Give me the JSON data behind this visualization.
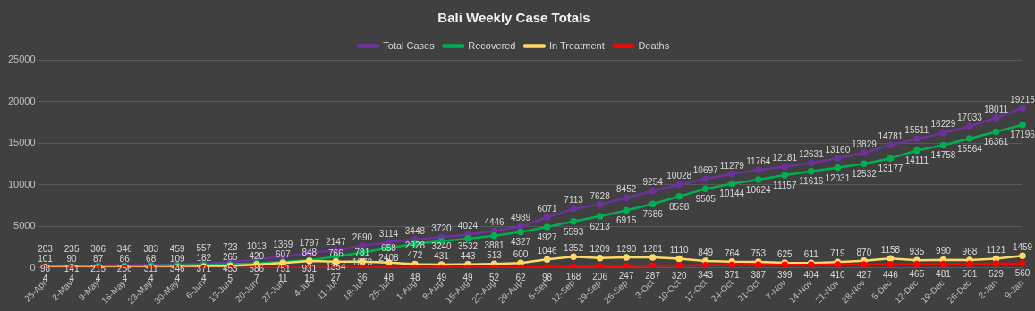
{
  "chart_data": {
    "type": "line",
    "title": "Bali Weekly Case Totals",
    "categories": [
      "25-Apr",
      "2-May",
      "9-May",
      "16-May",
      "23-May",
      "30-May",
      "6-Jun",
      "13-Jun",
      "20-Jun",
      "27-Jun",
      "4-Jul",
      "11-Jul",
      "18-Jul",
      "25-Jul",
      "1-Aug",
      "8-Aug",
      "15-Aug",
      "22-Aug",
      "29-Aug",
      "5-Sep",
      "12-Sep",
      "19-Sep",
      "26-Sep",
      "3-Oct",
      "10-Oct",
      "17-Oct",
      "24-Oct",
      "31-Oct",
      "7-Nov",
      "14-Nov",
      "21-Nov",
      "28-Nov",
      "5-Dec",
      "12-Dec",
      "19-Dec",
      "26-Dec",
      "2-Jan",
      "9-Jan"
    ],
    "series": [
      {
        "name": "Total Cases",
        "color": "#7030a0",
        "values": [
          203,
          235,
          306,
          346,
          383,
          459,
          557,
          723,
          1013,
          1369,
          1797,
          2147,
          2690,
          3114,
          3448,
          3720,
          4024,
          4446,
          4989,
          6071,
          7113,
          7628,
          8452,
          9254,
          10028,
          10697,
          11279,
          11764,
          12181,
          12631,
          13160,
          13829,
          14781,
          15511,
          16229,
          17033,
          18011,
          19215
        ]
      },
      {
        "name": "Recovered",
        "color": "#00b050",
        "values": [
          98,
          141,
          215,
          256,
          311,
          346,
          371,
          453,
          586,
          751,
          931,
          1354,
          1873,
          2408,
          2928,
          3240,
          3532,
          3881,
          4327,
          4927,
          5593,
          6213,
          6915,
          7686,
          8598,
          9505,
          10144,
          10624,
          11157,
          11616,
          12031,
          12532,
          13177,
          14111,
          14758,
          15564,
          16361,
          17196
        ]
      },
      {
        "name": "In Treatment",
        "color": "#ffd966",
        "values": [
          101,
          90,
          87,
          86,
          68,
          109,
          182,
          265,
          420,
          607,
          848,
          766,
          781,
          658,
          472,
          431,
          443,
          513,
          600,
          1046,
          1352,
          1209,
          1290,
          1281,
          1110,
          849,
          764,
          753,
          625,
          611,
          719,
          870,
          1158,
          935,
          990,
          968,
          1121,
          1459
        ]
      },
      {
        "name": "Deaths",
        "color": "#ff0000",
        "values": [
          4,
          4,
          4,
          4,
          4,
          4,
          4,
          5,
          7,
          11,
          18,
          27,
          36,
          48,
          48,
          49,
          49,
          52,
          62,
          98,
          168,
          206,
          247,
          287,
          320,
          343,
          371,
          387,
          399,
          404,
          410,
          427,
          446,
          465,
          481,
          501,
          529,
          560
        ]
      }
    ],
    "ylim": [
      0,
      25000
    ],
    "yticks": [
      0,
      5000,
      10000,
      15000,
      20000,
      25000
    ],
    "grid": "y",
    "legend": "top",
    "marker": "circle",
    "line_style": "solid",
    "data_labels": true
  }
}
